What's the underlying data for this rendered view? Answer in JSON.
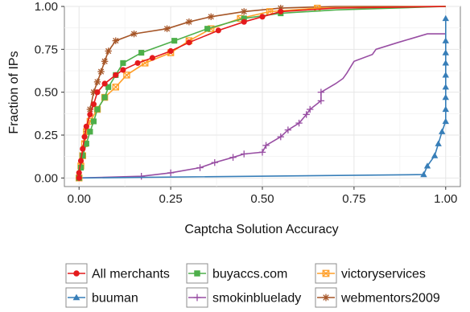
{
  "chart_data": {
    "type": "line",
    "title": "",
    "xlabel": "Captcha Solution Accuracy",
    "ylabel": "Fraction of IPs",
    "xlim": [
      -0.04,
      1.04
    ],
    "ylim": [
      -0.05,
      1.0
    ],
    "x_ticks": [
      0.0,
      0.25,
      0.5,
      0.75,
      1.0
    ],
    "x_tick_labels": [
      "0.00",
      "0.25",
      "0.50",
      "0.75",
      "1.00"
    ],
    "y_ticks": [
      0.0,
      0.25,
      0.5,
      0.75,
      1.0
    ],
    "y_tick_labels": [
      "0.00",
      "0.25",
      "0.50",
      "0.75",
      "1.00"
    ],
    "grid": true,
    "legend_position": "bottom",
    "series": [
      {
        "name": "All merchants",
        "color": "#e41a1c",
        "marker": "circle",
        "x": [
          0.0,
          0.0,
          0.005,
          0.01,
          0.015,
          0.02,
          0.03,
          0.04,
          0.05,
          0.07,
          0.1,
          0.12,
          0.16,
          0.2,
          0.25,
          0.3,
          0.38,
          0.45,
          0.5,
          0.55,
          0.7,
          1.0
        ],
        "y": [
          0.0,
          0.03,
          0.1,
          0.17,
          0.24,
          0.3,
          0.37,
          0.43,
          0.5,
          0.55,
          0.6,
          0.63,
          0.67,
          0.7,
          0.74,
          0.79,
          0.86,
          0.91,
          0.94,
          0.97,
          0.99,
          1.0
        ]
      },
      {
        "name": "buyaccs.com",
        "color": "#4daf4a",
        "marker": "square",
        "x": [
          0.0,
          0.005,
          0.01,
          0.02,
          0.03,
          0.04,
          0.05,
          0.07,
          0.08,
          0.1,
          0.12,
          0.17,
          0.26,
          0.35,
          0.45,
          0.55,
          0.7,
          1.0
        ],
        "y": [
          0.0,
          0.06,
          0.13,
          0.2,
          0.27,
          0.33,
          0.4,
          0.47,
          0.53,
          0.6,
          0.67,
          0.73,
          0.8,
          0.87,
          0.93,
          0.96,
          0.98,
          1.0
        ]
      },
      {
        "name": "victoryservices",
        "color": "#ff9f29",
        "marker": "boxcross",
        "x": [
          0.0,
          0.005,
          0.01,
          0.015,
          0.02,
          0.03,
          0.05,
          0.07,
          0.1,
          0.13,
          0.18,
          0.25,
          0.3,
          0.36,
          0.44,
          0.52,
          0.65,
          1.0
        ],
        "y": [
          0.0,
          0.07,
          0.13,
          0.2,
          0.27,
          0.33,
          0.4,
          0.47,
          0.53,
          0.6,
          0.67,
          0.73,
          0.8,
          0.87,
          0.93,
          0.97,
          0.99,
          1.0
        ]
      },
      {
        "name": "buuman",
        "color": "#377eb8",
        "marker": "triangle",
        "x": [
          0.0,
          0.94,
          0.95,
          0.97,
          0.98,
          0.99,
          1.0,
          1.0,
          1.0,
          1.0,
          1.0,
          1.0,
          1.0,
          1.0,
          1.0
        ],
        "y": [
          0.0,
          0.02,
          0.07,
          0.13,
          0.2,
          0.27,
          0.33,
          0.4,
          0.47,
          0.53,
          0.6,
          0.67,
          0.73,
          0.8,
          0.93
        ]
      },
      {
        "name": "smokinbluelady",
        "color": "#984ea3",
        "marker": "plus",
        "x": [
          0.0,
          0.17,
          0.25,
          0.33,
          0.37,
          0.42,
          0.45,
          0.5,
          0.51,
          0.55,
          0.57,
          0.6,
          0.62,
          0.63,
          0.66,
          0.66,
          0.7,
          0.72,
          0.73,
          0.75,
          0.8,
          0.81,
          0.87,
          0.95,
          1.0
        ],
        "y": [
          0.0,
          0.01,
          0.03,
          0.06,
          0.09,
          0.12,
          0.14,
          0.15,
          0.19,
          0.24,
          0.28,
          0.32,
          0.37,
          0.4,
          0.45,
          0.5,
          0.55,
          0.58,
          0.61,
          0.68,
          0.72,
          0.75,
          0.79,
          0.84,
          0.84
        ]
      },
      {
        "name": "webmentors2009",
        "color": "#a65628",
        "marker": "star",
        "x": [
          0.0,
          0.01,
          0.02,
          0.03,
          0.04,
          0.05,
          0.06,
          0.07,
          0.08,
          0.1,
          0.15,
          0.24,
          0.3,
          0.36,
          0.45,
          0.55,
          0.7,
          1.0
        ],
        "y": [
          0.0,
          0.13,
          0.27,
          0.4,
          0.5,
          0.56,
          0.62,
          0.68,
          0.74,
          0.8,
          0.84,
          0.87,
          0.91,
          0.94,
          0.97,
          0.99,
          1.0,
          1.0
        ]
      }
    ]
  }
}
